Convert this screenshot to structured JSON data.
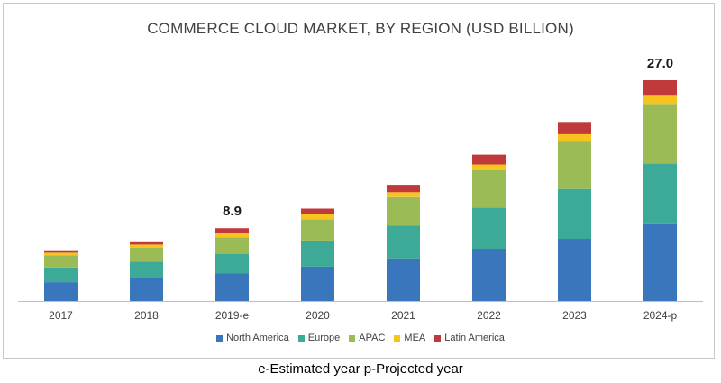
{
  "chart_data": {
    "type": "bar",
    "stacked": true,
    "title": "COMMERCE CLOUD MARKET, BY REGION (USD BILLION)",
    "categories": [
      "2017",
      "2018",
      "2019-e",
      "2020",
      "2021",
      "2022",
      "2023",
      "2024-p"
    ],
    "series": [
      {
        "name": "North America",
        "color": "#3a76bb",
        "values": [
          2.3,
          2.8,
          3.4,
          4.2,
          5.2,
          6.4,
          7.6,
          9.4
        ]
      },
      {
        "name": "Europe",
        "color": "#3caa96",
        "values": [
          1.8,
          2.0,
          2.4,
          3.2,
          4.0,
          5.0,
          6.1,
          7.4
        ]
      },
      {
        "name": "APAC",
        "color": "#9bbb57",
        "values": [
          1.5,
          1.7,
          2.0,
          2.6,
          3.5,
          4.6,
          5.8,
          7.3
        ]
      },
      {
        "name": "MEA",
        "color": "#f7c41f",
        "values": [
          0.3,
          0.4,
          0.5,
          0.6,
          0.6,
          0.7,
          0.9,
          1.1
        ]
      },
      {
        "name": "Latin America",
        "color": "#c0393b",
        "values": [
          0.3,
          0.4,
          0.6,
          0.7,
          0.9,
          1.2,
          1.5,
          1.8
        ]
      }
    ],
    "annotations": [
      {
        "category": "2019-e",
        "label": "8.9"
      },
      {
        "category": "2024-p",
        "label": "27.0"
      }
    ],
    "ylim": [
      0,
      27
    ],
    "grid": false,
    "legend_position": "bottom"
  },
  "footnote": "e-Estimated year p-Projected year"
}
